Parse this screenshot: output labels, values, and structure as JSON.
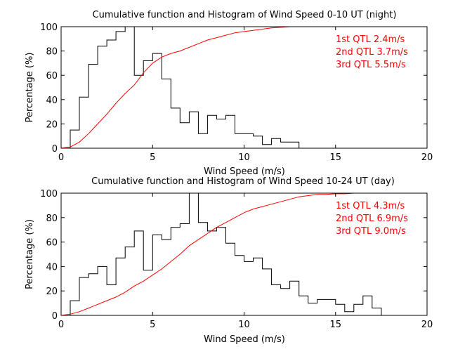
{
  "chart_data": [
    {
      "type": "line",
      "title": "Cumulative function and Histogram of Wind Speed 0-10 UT (night)",
      "xlabel": "Wind Speed (m/s)",
      "ylabel": "Percentage (%)",
      "xlim": [
        0,
        20
      ],
      "ylim": [
        0,
        100
      ],
      "xticks": [
        0,
        5,
        10,
        15,
        20
      ],
      "yticks": [
        0,
        20,
        40,
        60,
        80,
        100
      ],
      "annotations": [
        "1st QTL 2.4m/s",
        "2nd QTL 3.7m/s",
        "3rd QTL 5.5m/s"
      ],
      "series": [
        {
          "name": "Histogram",
          "style": "stairs",
          "color": "#000000",
          "bin_width": 0.5,
          "bin_start": 0.5,
          "values": [
            15,
            42,
            69,
            84,
            89,
            96,
            100,
            60,
            72,
            78,
            57,
            33,
            21,
            30,
            12,
            27,
            24,
            27,
            12,
            12,
            10,
            3,
            8,
            5,
            5
          ]
        },
        {
          "name": "Cumulative function",
          "style": "line",
          "color": "#ff0000",
          "x": [
            0,
            0.5,
            1,
            1.5,
            2,
            2.5,
            3,
            3.5,
            4,
            4.5,
            5,
            5.5,
            6,
            6.5,
            7,
            7.5,
            8,
            8.5,
            9,
            9.5,
            10,
            10.5,
            11,
            11.5,
            12,
            12.5,
            13,
            14,
            15,
            16,
            17,
            18,
            19,
            20
          ],
          "y": [
            0,
            1,
            5,
            12,
            20,
            28,
            37,
            45,
            52,
            62,
            70,
            75,
            78,
            80,
            83,
            86,
            89,
            91,
            93,
            95,
            96,
            97,
            98,
            99,
            99.5,
            100,
            100,
            100,
            100,
            100,
            100,
            100,
            100,
            100
          ]
        }
      ]
    },
    {
      "type": "line",
      "title": "Cumulative function and Histogram of Wind Speed 10-24 UT (day)",
      "xlabel": "Wind Speed (m/s)",
      "ylabel": "Percentage (%)",
      "xlim": [
        0,
        20
      ],
      "ylim": [
        0,
        100
      ],
      "xticks": [
        0,
        5,
        10,
        15,
        20
      ],
      "yticks": [
        0,
        20,
        40,
        60,
        80,
        100
      ],
      "annotations": [
        "1st QTL 4.3m/s",
        "2nd QTL 6.9m/s",
        "3rd QTL 9.0m/s"
      ],
      "series": [
        {
          "name": "Histogram",
          "style": "stairs",
          "color": "#000000",
          "bin_width": 0.5,
          "bin_start": 0.5,
          "values": [
            12,
            31,
            34,
            40,
            25,
            47,
            56,
            69,
            37,
            66,
            62,
            72,
            75,
            100,
            76,
            69,
            72,
            59,
            49,
            44,
            47,
            38,
            25,
            22,
            28,
            16,
            10,
            13,
            13,
            9,
            3,
            9,
            16,
            6
          ]
        },
        {
          "name": "Cumulative function",
          "style": "line",
          "color": "#ff0000",
          "x": [
            0,
            0.5,
            1,
            1.5,
            2,
            2.5,
            3,
            3.5,
            4,
            4.5,
            5,
            5.5,
            6,
            6.5,
            7,
            7.5,
            8,
            8.5,
            9,
            9.5,
            10,
            10.5,
            11,
            11.5,
            12,
            12.5,
            13,
            13.5,
            14,
            14.5,
            15,
            15.5,
            16,
            16.5,
            17,
            18,
            19,
            20
          ],
          "y": [
            0,
            1,
            3,
            6,
            9,
            12,
            15,
            19,
            24,
            28,
            33,
            38,
            44,
            50,
            57,
            62,
            67,
            72,
            76,
            80,
            84,
            87,
            89,
            91,
            93,
            95,
            97,
            98,
            99,
            99,
            99.5,
            99.5,
            100,
            100,
            100,
            100,
            100,
            100
          ]
        }
      ]
    }
  ]
}
